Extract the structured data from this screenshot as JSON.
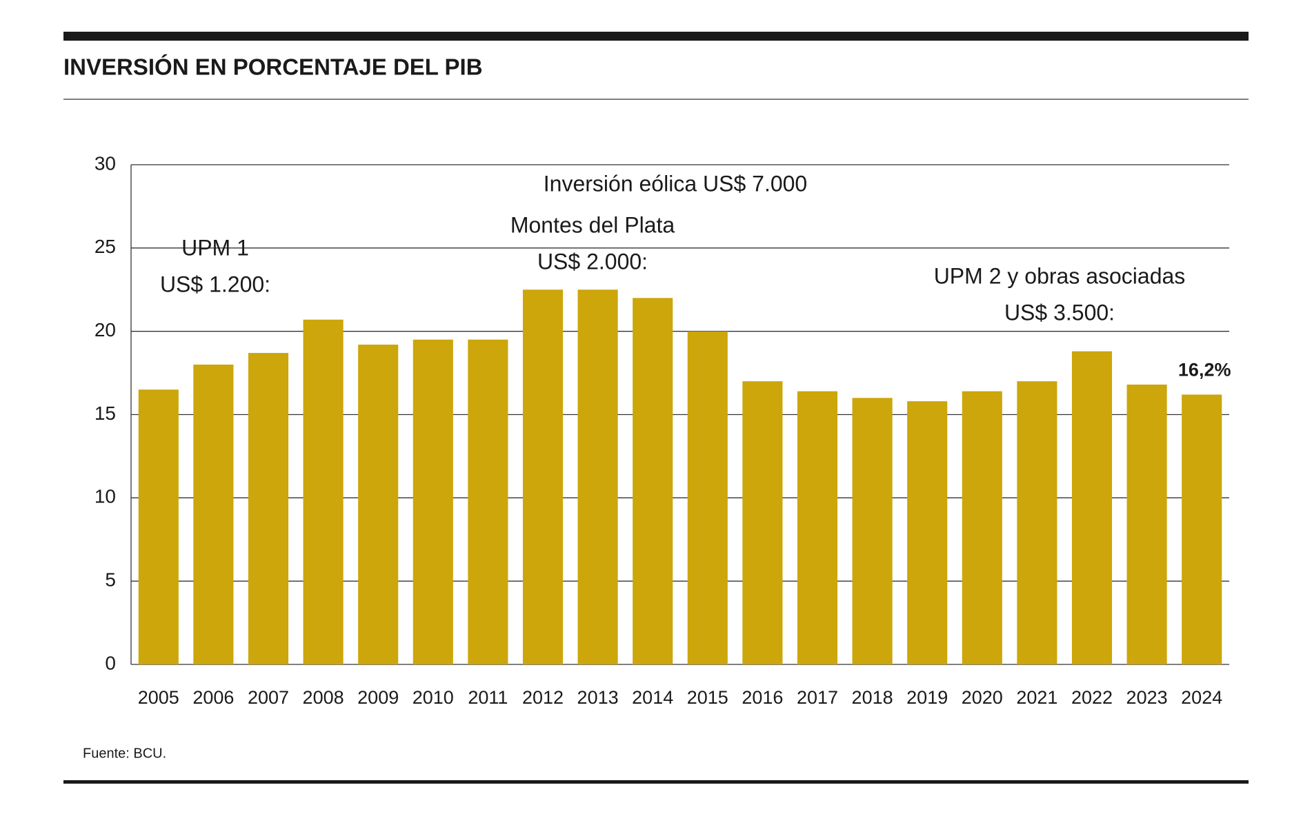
{
  "chart_data": {
    "type": "bar",
    "title": "INVERSIÓN EN PORCENTAJE DEL PIB",
    "categories": [
      "2005",
      "2006",
      "2007",
      "2008",
      "2009",
      "2010",
      "2011",
      "2012",
      "2013",
      "2014",
      "2015",
      "2016",
      "2017",
      "2018",
      "2019",
      "2020",
      "2021",
      "2022",
      "2023",
      "2024"
    ],
    "values": [
      16.5,
      18.0,
      18.7,
      20.7,
      19.2,
      19.5,
      19.5,
      22.5,
      22.5,
      22.0,
      20.0,
      17.0,
      16.4,
      16.0,
      15.8,
      16.4,
      17.0,
      18.8,
      16.8,
      16.2
    ],
    "value_labels": [
      null,
      null,
      null,
      null,
      null,
      null,
      null,
      null,
      null,
      null,
      null,
      null,
      null,
      null,
      null,
      null,
      null,
      null,
      null,
      "16,2%"
    ],
    "color": "#cca60a",
    "ylim": [
      0,
      30
    ],
    "yticks": [
      0,
      5,
      10,
      15,
      20,
      25,
      30
    ],
    "grid": true,
    "annotations": [
      "UPM 1",
      "US$ 1.200:",
      "Inversión eólica US$ 7.000",
      "Montes del Plata",
      "US$ 2.000:",
      "UPM 2 y obras asociadas",
      "US$ 3.500:"
    ],
    "source": "Fuente: BCU."
  }
}
